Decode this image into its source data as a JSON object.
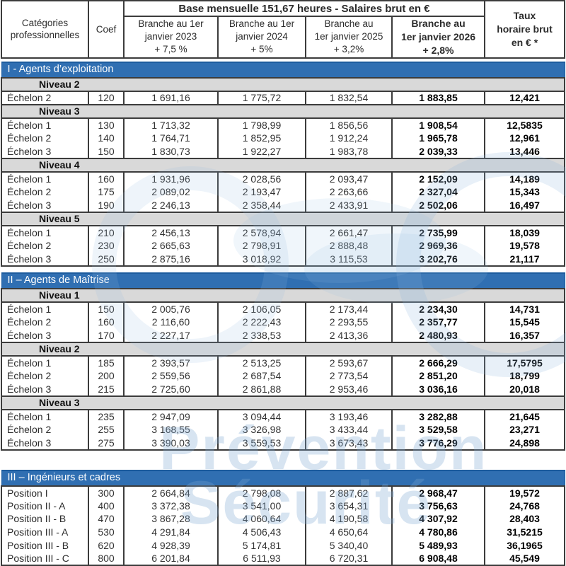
{
  "header": {
    "col_categories": "Catégories professionnelles",
    "col_coef": "Coef",
    "banner": "Base mensuelle 151,67 heures - Salaires brut en €",
    "branch_cols": [
      {
        "lines": [
          "Branche au 1er",
          "janvier 2023",
          "+ 7,5 %"
        ],
        "bold": false
      },
      {
        "lines": [
          "Branche au 1er",
          "janvier 2024",
          "+ 5%"
        ],
        "bold": false
      },
      {
        "lines": [
          "Branche au",
          "1er janvier 2025",
          "+ 3,2%"
        ],
        "bold": false
      },
      {
        "lines": [
          "Branche au",
          "1er janvier 2026",
          "+ 2,8%"
        ],
        "bold": true
      }
    ],
    "col_taux_lines": [
      "Taux",
      "horaire brut",
      "en € *"
    ]
  },
  "sections": [
    {
      "title": "I - Agents d’exploitation",
      "groups": [
        {
          "niveau": "Niveau 2",
          "rows": [
            [
              "Échelon 2",
              "120",
              "1 691,16",
              "1 775,72",
              "1 832,54",
              "1 883,85",
              "12,421"
            ]
          ]
        },
        {
          "niveau": "Niveau 3",
          "rows": [
            [
              "Échelon 1",
              "130",
              "1 713,32",
              "1 798,99",
              "1 856,56",
              "1 908,54",
              "12,5835"
            ],
            [
              "Échelon 2",
              "140",
              "1 764,71",
              "1 852,95",
              "1 912,24",
              "1 965,78",
              "12,961"
            ],
            [
              "Échelon 3",
              "150",
              "1 830,73",
              "1 922,27",
              "1 983,78",
              "2 039,33",
              "13,446"
            ]
          ]
        },
        {
          "niveau": "Niveau 4",
          "rows": [
            [
              "Échelon 1",
              "160",
              "1 931,96",
              "2 028,56",
              "2 093,47",
              "2 152,09",
              "14,189"
            ],
            [
              "Échelon 2",
              "175",
              "2 089,02",
              "2 193,47",
              "2 263,66",
              "2 327,04",
              "15,343"
            ],
            [
              "Échelon 3",
              "190",
              "2 246,13",
              "2 358,44",
              "2 433,91",
              "2 502,06",
              "16,497"
            ]
          ]
        },
        {
          "niveau": "Niveau 5",
          "rows": [
            [
              "Échelon 1",
              "210",
              "2 456,13",
              "2 578,94",
              "2 661,47",
              "2 735,99",
              "18,039"
            ],
            [
              "Échelon 2",
              "230",
              "2 665,63",
              "2 798,91",
              "2 888,48",
              "2 969,36",
              "19,578"
            ],
            [
              "Échelon 3",
              "250",
              "2 875,16",
              "3 018,92",
              "3 115,53",
              "3 202,76",
              "21,117"
            ]
          ]
        }
      ]
    },
    {
      "title": "II – Agents de Maîtrise",
      "groups": [
        {
          "niveau": "Niveau 1",
          "rows": [
            [
              "Échelon 1",
              "150",
              "2 005,76",
              "2 106,05",
              "2 173,44",
              "2 234,30",
              "14,731"
            ],
            [
              "Échelon 2",
              "160",
              "2 116,60",
              "2 222,43",
              "2 293,55",
              "2 357,77",
              "15,545"
            ],
            [
              "Échelon 3",
              "170",
              "2 227,17",
              "2 338,53",
              "2 413,36",
              "2 480,93",
              "16,357"
            ]
          ]
        },
        {
          "niveau": "Niveau 2",
          "rows": [
            [
              "Échelon 1",
              "185",
              "2 393,57",
              "2 513,25",
              "2 593,67",
              "2 666,29",
              "17,5795"
            ],
            [
              "Échelon 2",
              "200",
              "2 559,56",
              "2 687,54",
              "2 773,54",
              "2 851,20",
              "18,799"
            ],
            [
              "Échelon 3",
              "215",
              "2 725,60",
              "2 861,88",
              "2 953,46",
              "3 036,16",
              "20,018"
            ]
          ]
        },
        {
          "niveau": "Niveau 3",
          "rows": [
            [
              "Échelon 1",
              "235",
              "2 947,09",
              "3 094,44",
              "3 193,46",
              "3 282,88",
              "21,645"
            ],
            [
              "Échelon 2",
              "255",
              "3 168,55",
              "3 326,98",
              "3 433,44",
              "3 529,58",
              "23,271"
            ],
            [
              "Échelon 3",
              "275",
              "3 390,03",
              "3 559,53",
              "3 673,43",
              "3 776,29",
              "24,898"
            ]
          ]
        }
      ]
    },
    {
      "title": "III – Ingénieurs et cadres",
      "groups": [
        {
          "niveau": null,
          "rows": [
            [
              "Position I",
              "300",
              "2 664,84",
              "2 798,08",
              "2 887,62",
              "2 968,47",
              "19,572"
            ],
            [
              "Position II - A",
              "400",
              "3 372,38",
              "3 541,00",
              "3 654,31",
              "3 756,63",
              "24,768"
            ],
            [
              "Position II - B",
              "470",
              "3 867,28",
              "4 060,64",
              "4 190,58",
              "4 307,92",
              "28,403"
            ],
            [
              "Position III - A",
              "530",
              "4 291,84",
              "4 506,43",
              "4 650,64",
              "4 780,86",
              "31,5215"
            ],
            [
              "Position III - B",
              "620",
              "4 928,39",
              "5 174,81",
              "5 340,40",
              "5 489,93",
              "36,1965"
            ],
            [
              "Position III - C",
              "800",
              "6 201,84",
              "6 511,93",
              "6 720,31",
              "6 908,48",
              "45,549"
            ]
          ]
        }
      ]
    }
  ],
  "watermark": {
    "words": [
      "Prévention",
      "Sécurité"
    ]
  },
  "colors": {
    "section_bar": "#306fb2",
    "section_bar_border": "#1d5c9e",
    "niveau_band": "#d9d9d9",
    "grid_border": "#3c3c3c",
    "watermark_blue": "#7aa6d0"
  }
}
